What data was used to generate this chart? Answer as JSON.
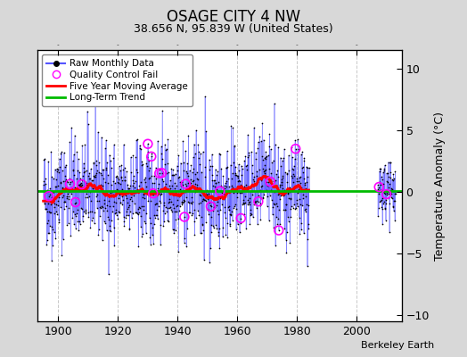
{
  "title": "OSAGE CITY 4 NW",
  "subtitle": "38.656 N, 95.839 W (United States)",
  "ylabel": "Temperature Anomaly (°C)",
  "attribution": "Berkeley Earth",
  "xlim": [
    1893,
    2015
  ],
  "ylim": [
    -10.5,
    11.5
  ],
  "yticks": [
    -10,
    -5,
    0,
    5,
    10
  ],
  "xticks": [
    1900,
    1920,
    1940,
    1960,
    1980,
    2000
  ],
  "seed": 42,
  "start_year": 1895,
  "end_year": 1983,
  "start_year2": 2007,
  "end_year2": 2012,
  "bg_color": "#d8d8d8",
  "plot_bg_color": "#ffffff",
  "raw_line_color": "#5555ff",
  "raw_dot_color": "#000000",
  "ma_color": "#ff0000",
  "trend_color": "#00bb00",
  "qc_fail_color": "#ff00ff",
  "legend_items": [
    "Raw Monthly Data",
    "Quality Control Fail",
    "Five Year Moving Average",
    "Long-Term Trend"
  ],
  "grid_color": "#bbbbbb",
  "grid_linestyle": "--",
  "grid_alpha": 0.8
}
